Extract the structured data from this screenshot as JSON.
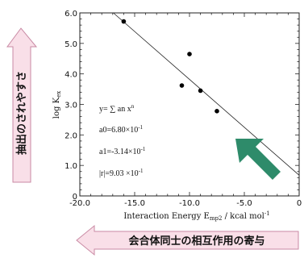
{
  "chart_data": {
    "type": "scatter",
    "x": [
      -16.0,
      -10.7,
      -10.0,
      -9.0,
      -7.5
    ],
    "y": [
      5.72,
      3.62,
      4.65,
      3.45,
      2.78
    ],
    "fit_line": {
      "a0": 0.68,
      "a1": -0.314
    },
    "xlabel": "Interaction Energy E",
    "xlabel_sub": "mp2",
    "xlabel_unit": " / kcal mol",
    "xlabel_sup": "-1",
    "ylabel": "log K",
    "ylabel_sub": "ex",
    "xlim": [
      -20.0,
      0
    ],
    "ylim": [
      0,
      6.0
    ],
    "xticks": [
      "-20.0",
      "-15.0",
      "-10.0",
      "-5.0",
      "0"
    ],
    "yticks": [
      "0",
      "1.0",
      "2.0",
      "3.0",
      "4.0",
      "5.0",
      "6.0"
    ],
    "grid": false
  },
  "annotations": {
    "equation": "y= ∑ an x",
    "equation_sup": "n",
    "a0_text": "a0=6.80×10",
    "a0_sup": "-1",
    "a1_text": "a1=-3.14×10",
    "a1_sup": "-1",
    "r_text": "|r|=9.03 ×10",
    "r_sup": "-1"
  },
  "vertical_arrow": {
    "label": "抽出のされやすさ",
    "color": "#f9dfe8",
    "border": "#c98aa4"
  },
  "horizontal_arrow": {
    "label": "会合体同士の相互作用の寄与",
    "color": "#f9dfe8",
    "border": "#c98aa4"
  },
  "green_arrow": {
    "color": "#2e8b6a"
  }
}
